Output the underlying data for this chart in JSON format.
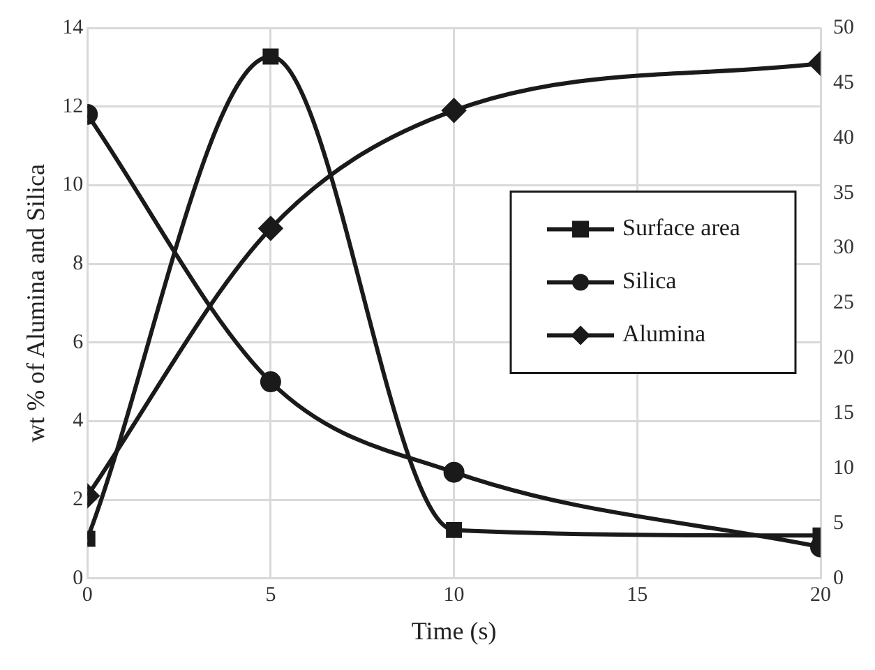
{
  "chart_data": {
    "type": "line",
    "xlabel": "Time (s)",
    "ylabel": "wt % of Alumina and Silica",
    "x": [
      0,
      5,
      10,
      20
    ],
    "series": [
      {
        "name": "Surface area",
        "color": "#1a1a1a",
        "values": [
          3.6,
          47.4,
          4.4,
          3.9
        ],
        "axis": "y2",
        "marker": "square"
      },
      {
        "name": "Silica",
        "color": "#1a1a1a",
        "values": [
          11.8,
          5.0,
          2.7,
          0.8
        ],
        "marker": "circle"
      },
      {
        "name": "Alumina",
        "color": "#1a1a1a",
        "values": [
          2.1,
          8.9,
          11.9,
          13.1
        ],
        "marker": "diamond"
      }
    ],
    "xlim": [
      0,
      20
    ],
    "xticks": [
      0,
      5,
      10,
      15,
      20
    ],
    "ylim": [
      0,
      14
    ],
    "yticks": [
      0,
      2,
      4,
      6,
      8,
      10,
      12,
      14
    ],
    "y2lim": [
      0,
      50
    ],
    "y2ticks": [
      0,
      5,
      10,
      15,
      20,
      25,
      30,
      35,
      40,
      45,
      50
    ],
    "grid": true,
    "legend": "right",
    "line_style": "solid"
  }
}
